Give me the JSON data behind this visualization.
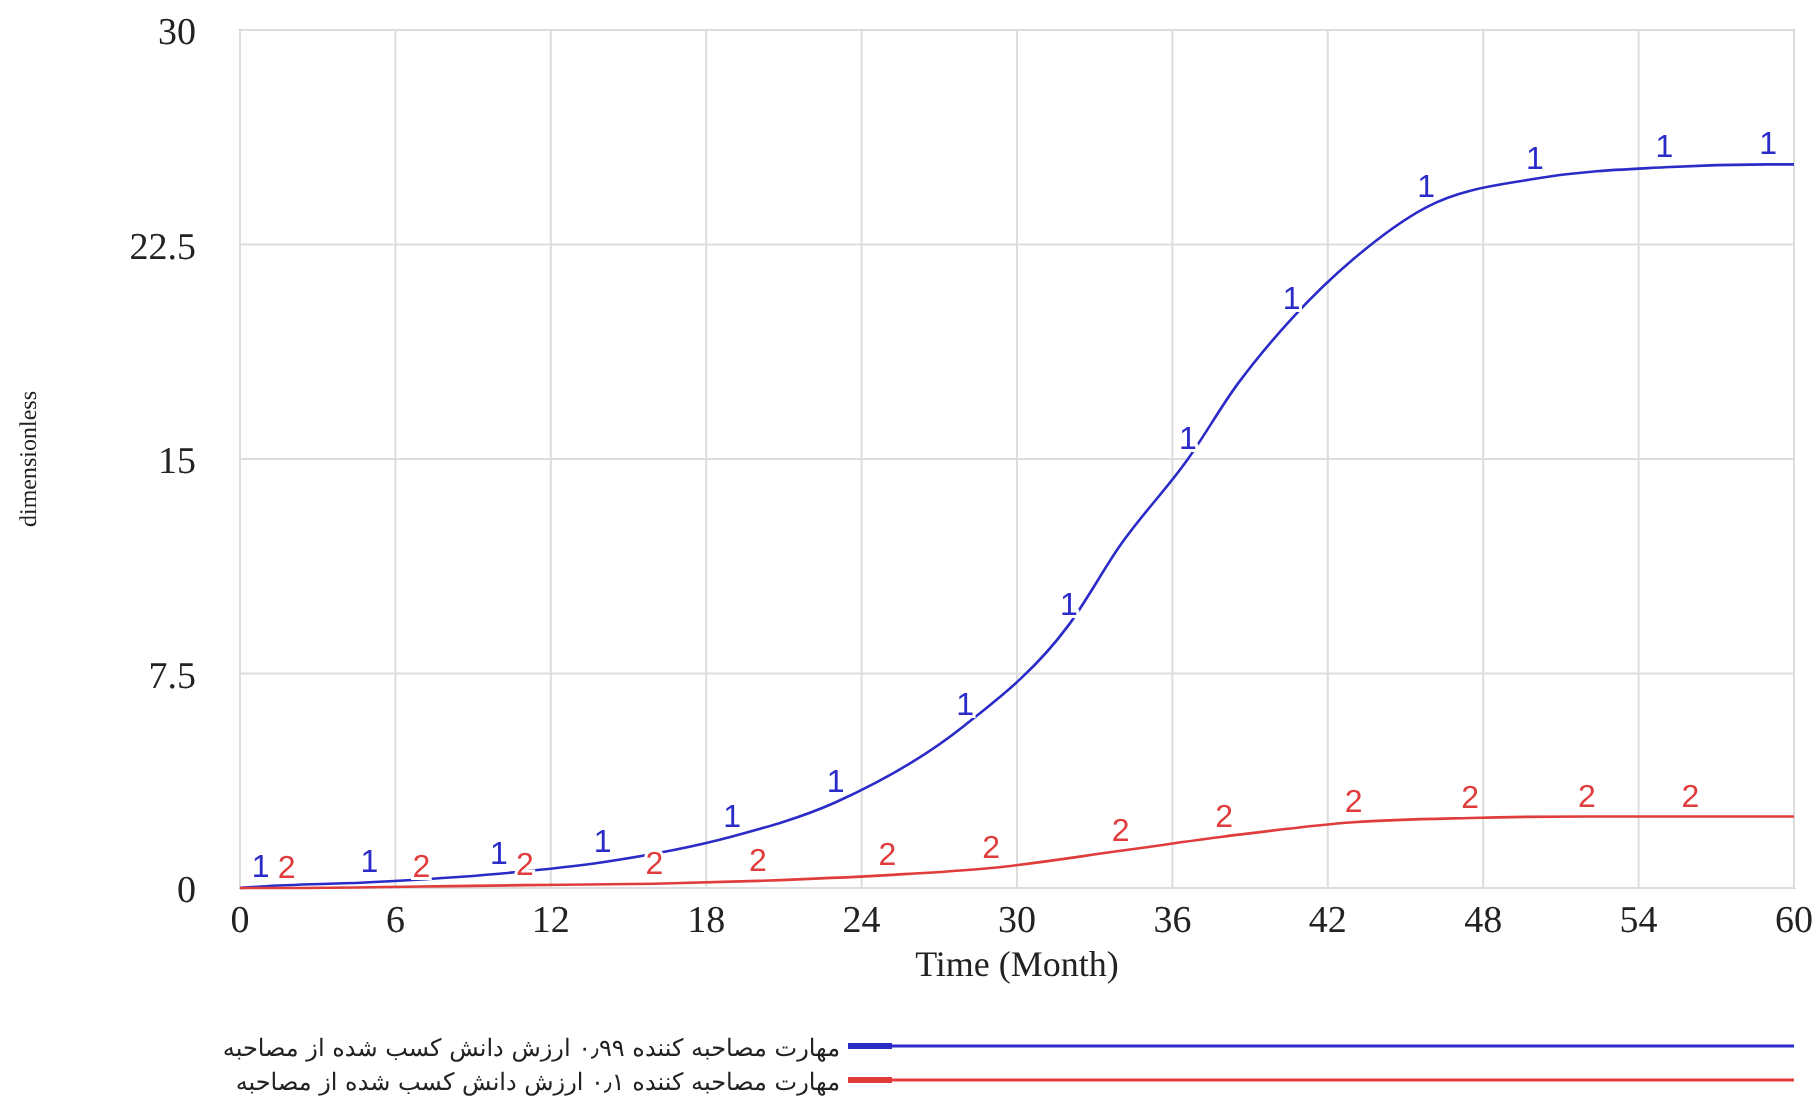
{
  "chart_data": {
    "type": "line",
    "xlabel": "Time (Month)",
    "ylabel": "dimensionless",
    "xlim": [
      0,
      60
    ],
    "xticks": [
      0,
      6,
      12,
      18,
      24,
      30,
      36,
      42,
      48,
      54,
      60
    ],
    "ylim": [
      0,
      30
    ],
    "yticks": [
      0,
      7.5,
      15,
      22.5,
      30
    ],
    "grid": true,
    "legend": "bottom",
    "series": [
      {
        "name": "مهارت مصاحبه کننده ۰٫۹۹ ارزش دانش کسب شده از مصاحبه",
        "color": "#2b2bc8",
        "x": [
          0,
          0.8,
          5,
          10,
          14,
          19,
          23,
          28,
          32,
          34,
          36.6,
          38.5,
          40.6,
          43,
          45.8,
          50,
          55,
          59,
          60
        ],
        "values": [
          0,
          0.05,
          0.2,
          0.5,
          0.9,
          1.8,
          3.0,
          5.7,
          9.2,
          12,
          15,
          17.6,
          19.9,
          22,
          23.8,
          24.8,
          25.2,
          25.3,
          25.3
        ]
      },
      {
        "name": "مهارت مصاحبه کننده ۰٫۱ ارزش دانش کسب شده از مصاحبه",
        "color": "#e03c3c",
        "x": [
          0,
          1.8,
          7,
          11,
          16,
          20,
          25,
          29,
          34,
          38,
          43,
          47.5,
          52,
          56,
          60
        ],
        "values": [
          0,
          0,
          0.05,
          0.1,
          0.15,
          0.25,
          0.45,
          0.7,
          1.3,
          1.8,
          2.3,
          2.45,
          2.5,
          2.5,
          2.5
        ]
      }
    ],
    "annotations": [
      {
        "text": "1",
        "x": 0.8,
        "y": 0.05
      },
      {
        "text": "1",
        "x": 5,
        "y": 0.2
      },
      {
        "text": "1",
        "x": 10,
        "y": 0.5
      },
      {
        "text": "1",
        "x": 14,
        "y": 0.9
      },
      {
        "text": "1",
        "x": 19,
        "y": 1.8
      },
      {
        "text": "1",
        "x": 23,
        "y": 3.0
      },
      {
        "text": "1",
        "x": 28,
        "y": 5.7
      },
      {
        "text": "1",
        "x": 32,
        "y": 9.2
      },
      {
        "text": "1",
        "x": 36.6,
        "y": 15
      },
      {
        "text": "1",
        "x": 40.6,
        "y": 19.9
      },
      {
        "text": "1",
        "x": 45.8,
        "y": 23.8
      },
      {
        "text": "1",
        "x": 50,
        "y": 24.8
      },
      {
        "text": "1",
        "x": 55,
        "y": 25.2
      },
      {
        "text": "1",
        "x": 59,
        "y": 25.3
      },
      {
        "text": "2",
        "x": 1.8,
        "y": 0
      },
      {
        "text": "2",
        "x": 7,
        "y": 0.05
      },
      {
        "text": "2",
        "x": 11,
        "y": 0.1
      },
      {
        "text": "2",
        "x": 16,
        "y": 0.15
      },
      {
        "text": "2",
        "x": 20,
        "y": 0.25
      },
      {
        "text": "2",
        "x": 25,
        "y": 0.45
      },
      {
        "text": "2",
        "x": 29,
        "y": 0.7
      },
      {
        "text": "2",
        "x": 34,
        "y": 1.3
      },
      {
        "text": "2",
        "x": 38,
        "y": 1.8
      },
      {
        "text": "2",
        "x": 43,
        "y": 2.3
      },
      {
        "text": "2",
        "x": 47.5,
        "y": 2.45
      },
      {
        "text": "2",
        "x": 52,
        "y": 2.5
      },
      {
        "text": "2",
        "x": 56,
        "y": 2.5
      }
    ]
  }
}
